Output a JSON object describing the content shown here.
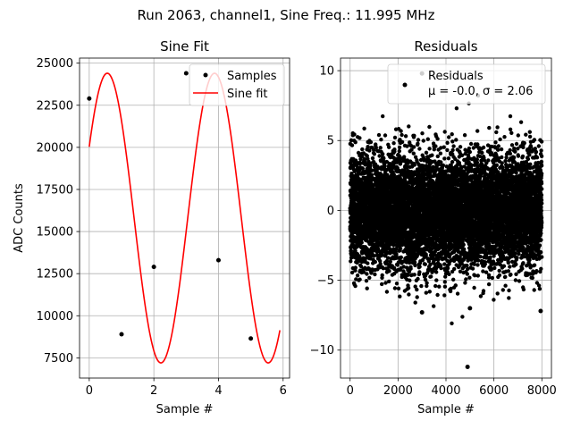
{
  "figure": {
    "title": "Run 2063, channel1, Sine Freq.: 11.995 MHz"
  },
  "chart_data": [
    {
      "type": "line",
      "title": "Sine Fit",
      "xlabel": "Sample #",
      "ylabel": "ADC Counts",
      "xlim": [
        -0.3,
        6.2
      ],
      "ylim": [
        6300,
        25300
      ],
      "xticks": [
        0,
        2,
        4,
        6
      ],
      "yticks": [
        7500,
        10000,
        12500,
        15000,
        17500,
        20000,
        22500,
        25000
      ],
      "xtick_labels": [
        "0",
        "2",
        "4",
        "6"
      ],
      "ytick_labels": [
        "7500",
        "10000",
        "12500",
        "15000",
        "17500",
        "20000",
        "22500",
        "25000"
      ],
      "grid": true,
      "legend_position": "top-right",
      "series": [
        {
          "name": "Samples",
          "kind": "scatter",
          "color": "#000000",
          "x": [
            0,
            1,
            2,
            3,
            4,
            5
          ],
          "y": [
            22900,
            8900,
            12900,
            24400,
            13300,
            8650
          ]
        },
        {
          "name": "Sine fit",
          "kind": "line",
          "color": "#ff0000",
          "model": {
            "offset": 15800,
            "amplitude": 8600,
            "period": 3.32,
            "phase_deg": 60.5
          },
          "x_range": [
            0,
            5.9
          ]
        }
      ]
    },
    {
      "type": "scatter",
      "title": "Residuals",
      "xlabel": "Sample #",
      "ylabel": "",
      "xlim": [
        -400,
        8400
      ],
      "ylim": [
        -12.0,
        10.9
      ],
      "xticks": [
        0,
        2000,
        4000,
        6000,
        8000
      ],
      "yticks": [
        -10,
        -5,
        0,
        5,
        10
      ],
      "xtick_labels": [
        "0",
        "2000",
        "4000",
        "6000",
        "8000"
      ],
      "ytick_labels": [
        "−10",
        "−5",
        "0",
        "5",
        "10"
      ],
      "grid": true,
      "legend_position": "top-right",
      "series": [
        {
          "name": "Residuals",
          "color": "#000000",
          "n_points": 8000,
          "mean": -0.0,
          "std": 2.06,
          "outliers": [
            [
              4900,
              -11.2
            ],
            [
              3000,
              9.8
            ],
            [
              3000,
              -7.3
            ],
            [
              5000,
              -7.0
            ],
            [
              7950,
              -7.2
            ]
          ]
        }
      ],
      "legend_stats": "μ = -0.0, σ = 2.06"
    }
  ]
}
